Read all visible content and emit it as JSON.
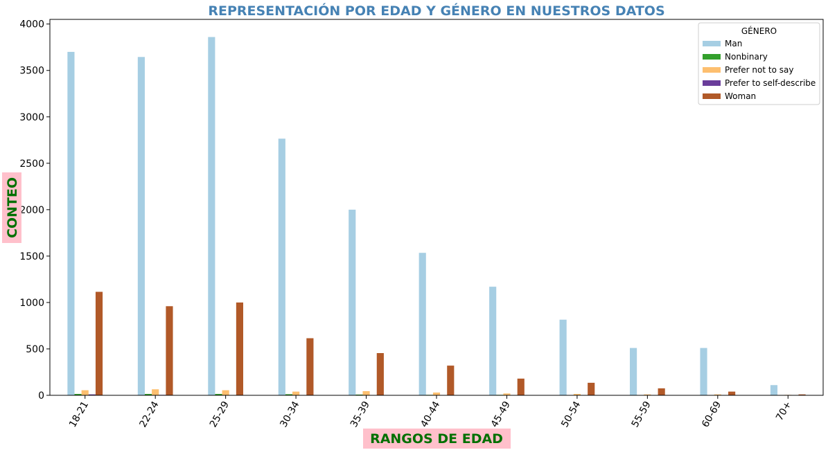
{
  "chart_data": {
    "type": "bar",
    "title": "REPRESENTACIÓN POR EDAD Y GÉNERO EN NUESTROS DATOS",
    "xlabel": "RANGOS DE EDAD",
    "ylabel": "CONTEO",
    "categories": [
      "18-21",
      "22-24",
      "25-29",
      "30-34",
      "35-39",
      "40-44",
      "45-49",
      "50-54",
      "55-59",
      "60-69",
      "70+"
    ],
    "ylim": [
      0,
      4050
    ],
    "yticks": [
      0,
      500,
      1000,
      1500,
      2000,
      2500,
      3000,
      3500,
      4000
    ],
    "grid": false,
    "legend_title": "GÉNERO",
    "legend_position": "top-right",
    "series": [
      {
        "name": "Man",
        "color": "#a6cee3",
        "values": [
          3700,
          3645,
          3860,
          2765,
          2000,
          1535,
          1170,
          815,
          510,
          510,
          110
        ]
      },
      {
        "name": "Nonbinary",
        "color": "#33a02c",
        "values": [
          15,
          15,
          15,
          12,
          8,
          5,
          5,
          3,
          2,
          2,
          1
        ]
      },
      {
        "name": "Prefer not to say",
        "color": "#fdbf6f",
        "values": [
          55,
          65,
          55,
          40,
          45,
          30,
          20,
          15,
          10,
          10,
          5
        ]
      },
      {
        "name": "Prefer to self-describe",
        "color": "#6a3d9a",
        "values": [
          10,
          5,
          3,
          3,
          2,
          2,
          1,
          1,
          1,
          1,
          0
        ]
      },
      {
        "name": "Woman",
        "color": "#b15928",
        "values": [
          1115,
          960,
          1000,
          615,
          455,
          320,
          180,
          135,
          75,
          40,
          10
        ]
      }
    ],
    "colors": {
      "title": "#4682b4",
      "axis_label": "#007000",
      "axis_label_bg": "#ffc0cb"
    }
  }
}
